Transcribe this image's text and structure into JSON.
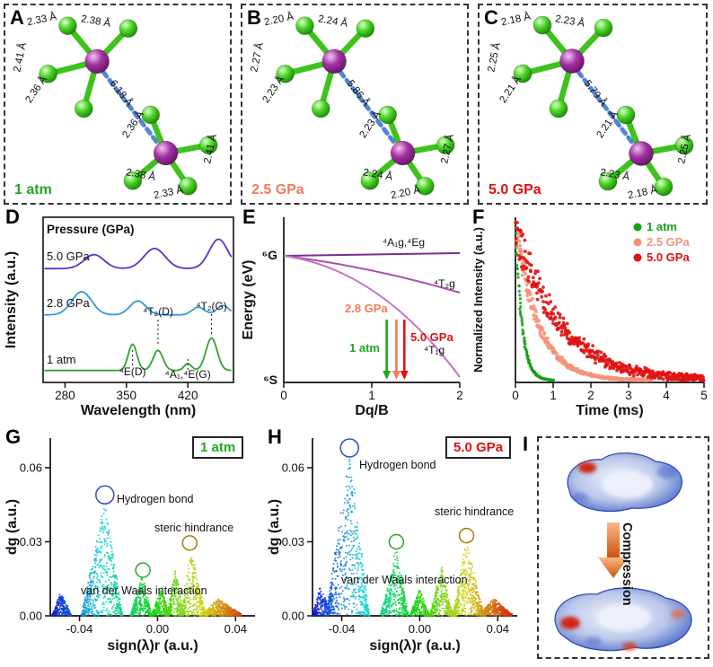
{
  "panels": {
    "A": {
      "letter": "A",
      "pressure": "1 atm",
      "pressure_color": "#1faa1f",
      "distance": "6.18 Å",
      "bonds": {
        "t1": "2.33 Å",
        "t2": "2.38 Å",
        "t3": "2.41 Å",
        "t4": "2.36 Å",
        "b1": "2.36 Å",
        "b2": "2.41 Å",
        "b3": "2.38 Å",
        "b4": "2.33 Å"
      }
    },
    "B": {
      "letter": "B",
      "pressure": "2.5 GPa",
      "pressure_color": "#f4795b",
      "distance": "5.86 Å",
      "bonds": {
        "t1": "2.20 Å",
        "t2": "2.24 Å",
        "t3": "2.27 Å",
        "t4": "2.23 Å",
        "b1": "2.23 Å",
        "b2": "2.27 Å",
        "b3": "2.24 Å",
        "b4": "2.20 Å"
      }
    },
    "C": {
      "letter": "C",
      "pressure": "5.0 GPa",
      "pressure_color": "#e01010",
      "distance": "5.79 Å",
      "bonds": {
        "t1": "2.18 Å",
        "t2": "2.23 Å",
        "t3": "2.25 Å",
        "t4": "2.21 Å",
        "b1": "2.21 Å",
        "b2": "2.25 Å",
        "b3": "2.23 Å",
        "b4": "2.18 Å"
      }
    },
    "D": {
      "letter": "D"
    },
    "E": {
      "letter": "E"
    },
    "F": {
      "letter": "F"
    },
    "G": {
      "letter": "G"
    },
    "H": {
      "letter": "H"
    },
    "I": {
      "letter": "I",
      "compression_label": "Compression"
    }
  },
  "chart_data": [
    {
      "id": "D",
      "type": "line",
      "xlabel": "Wavelength (nm)",
      "ylabel": "Intensity (a.u.)",
      "xlim": [
        255,
        472
      ],
      "xticks": [
        280,
        350,
        420
      ],
      "annotation": "Pressure (GPa)",
      "series": [
        {
          "name": "5.0 GPa",
          "color": "#5a35c8",
          "offset": 0.72,
          "peaks": [
            [
              313,
              0.09,
              16
            ],
            [
              382,
              0.13,
              17
            ],
            [
              455,
              0.19,
              15
            ]
          ]
        },
        {
          "name": "2.8 GPa",
          "color": "#2f9bd6",
          "offset": 0.42,
          "peaks": [
            [
              299,
              0.15,
              16
            ],
            [
              363,
              0.09,
              13
            ],
            [
              432,
              0.05,
              10
            ],
            [
              460,
              0.06,
              10
            ]
          ]
        },
        {
          "name": "1 atm",
          "color": "#2fa32f",
          "offset": 0.06,
          "peaks": [
            [
              357,
              0.17,
              7
            ],
            [
              386,
              0.13,
              8
            ],
            [
              420,
              0.045,
              6
            ],
            [
              447,
              0.21,
              9
            ]
          ]
        }
      ],
      "peak_annotations": [
        {
          "text": "⁴T₂(D)",
          "wl": 386
        },
        {
          "text": "⁴T₂(G)",
          "wl": 447
        },
        {
          "text": "⁴E(D)",
          "wl": 357
        },
        {
          "text": "⁴A₁,⁴E(G)",
          "wl": 420
        }
      ]
    },
    {
      "id": "E",
      "type": "line",
      "xlabel": "Dq/B",
      "ylabel": "Energy (eV)",
      "xlim": [
        0,
        2
      ],
      "xticks": [
        0,
        1,
        2
      ],
      "top_level": "⁶G",
      "bottom_level": "⁶S",
      "lines": [
        {
          "name": "⁴A₁g,⁴Eg",
          "color": "#7b2d8e"
        },
        {
          "name": "⁴T₂g",
          "color": "#a84fae"
        },
        {
          "name": "⁴T₁g",
          "color": "#c86fc8"
        }
      ],
      "arrows": [
        {
          "name": "1 atm",
          "x": 1.17,
          "color": "#1faa1f"
        },
        {
          "name": "2.8 GPa",
          "x": 1.28,
          "color": "#f4795b"
        },
        {
          "name": "5.0 GPa",
          "x": 1.37,
          "color": "#e01010"
        }
      ]
    },
    {
      "id": "F",
      "type": "scatter",
      "xlabel": "Time (ms)",
      "ylabel": "Normalized Intensity (a.u.)",
      "xlim": [
        0,
        5
      ],
      "xticks": [
        0,
        1,
        2,
        3,
        4,
        5
      ],
      "series": [
        {
          "name": "1 atm",
          "color": "#18a018",
          "tau": 0.17,
          "tmax": 1.0
        },
        {
          "name": "2.5 GPa",
          "color": "#f5937a",
          "tau": 0.6,
          "tmax": 3.6
        },
        {
          "name": "5.0 GPa",
          "color": "#e01212",
          "tau": 1.15,
          "tmax": 5.0
        }
      ]
    },
    {
      "id": "G",
      "type": "scatter",
      "badge": "1 atm",
      "badge_color": "#1faa1f",
      "xlabel": "sign(λ)r (a.u.)",
      "ylabel": "dg (a.u.)",
      "xlim": [
        -0.055,
        0.05
      ],
      "ylim": [
        0,
        0.072
      ],
      "xticks": [
        "-0.04",
        "0.00",
        "0.04"
      ],
      "xtick_vals": [
        -0.04,
        0,
        0.04
      ],
      "yticks": [
        "0.00",
        "0.03",
        "0.06"
      ],
      "ytick_vals": [
        0,
        0.03,
        0.06
      ],
      "peaks": [
        [
          -0.05,
          0.01,
          0.004,
          0.006
        ],
        [
          -0.027,
          0.047,
          0.012,
          0.009
        ],
        [
          -0.008,
          0.016,
          0.006,
          0.005
        ],
        [
          0.002,
          0.012,
          0.005,
          0.004
        ],
        [
          0.009,
          0.019,
          0.004,
          0.005
        ],
        [
          0.017,
          0.027,
          0.005,
          0.008
        ],
        [
          0.031,
          0.007,
          0.008,
          0.013
        ]
      ],
      "annotations": {
        "hbond": "Hydrogen bond",
        "vdw": "van der Waals interaction",
        "steric": "steric hindrance"
      },
      "circles": [
        {
          "x": -0.027,
          "y": 0.049,
          "r": 10,
          "color": "#2b50c8"
        },
        {
          "x": -0.0075,
          "y": 0.0185,
          "r": 8,
          "color": "#2fa32f"
        },
        {
          "x": 0.0165,
          "y": 0.0295,
          "r": 8,
          "color": "#a07d00"
        }
      ]
    },
    {
      "id": "H",
      "type": "scatter",
      "badge": "5.0 GPa",
      "badge_color": "#e01010",
      "xlabel": "sign(λ)r (a.u.)",
      "ylabel": "dg (a.u.)",
      "xlim": [
        -0.055,
        0.05
      ],
      "ylim": [
        0,
        0.072
      ],
      "xticks": [
        "-0.04",
        "0.00",
        "0.04"
      ],
      "xtick_vals": [
        -0.04,
        0,
        0.04
      ],
      "yticks": [
        "0.00",
        "0.03",
        "0.06"
      ],
      "ytick_vals": [
        0,
        0.03,
        0.06
      ],
      "peaks": [
        [
          -0.051,
          0.012,
          0.004,
          0.006
        ],
        [
          -0.036,
          0.066,
          0.012,
          0.01
        ],
        [
          -0.012,
          0.028,
          0.008,
          0.006
        ],
        [
          0.0,
          0.011,
          0.005,
          0.005
        ],
        [
          0.011,
          0.02,
          0.006,
          0.006
        ],
        [
          0.024,
          0.031,
          0.007,
          0.009
        ],
        [
          0.038,
          0.007,
          0.008,
          0.01
        ]
      ],
      "annotations": {
        "hbond": "Hydrogen bond",
        "vdw": "van der Waals interaction",
        "steric": "steric hindrance"
      },
      "circles": [
        {
          "x": -0.036,
          "y": 0.068,
          "r": 10,
          "color": "#2b50c8"
        },
        {
          "x": -0.012,
          "y": 0.03,
          "r": 8,
          "color": "#2fa32f"
        },
        {
          "x": 0.024,
          "y": 0.0325,
          "r": 8,
          "color": "#a07d00"
        }
      ]
    }
  ]
}
